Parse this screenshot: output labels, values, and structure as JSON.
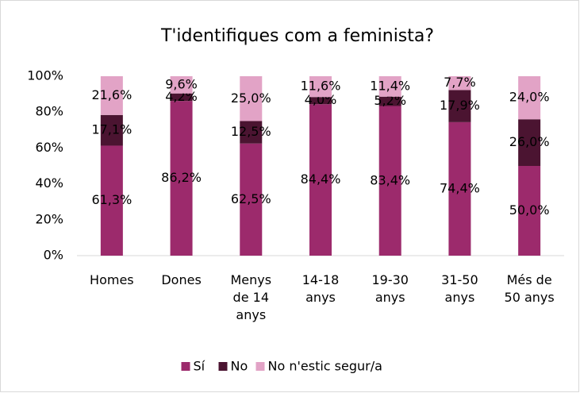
{
  "chart_data": {
    "type": "stacked_bar",
    "title": "T'identifiques com a feminista?",
    "categories": [
      "Homes",
      "Dones",
      "Menys de 14 anys",
      "14-18 anys",
      "19-30 anys",
      "31-50 anys",
      "Més de 50 anys"
    ],
    "series": [
      {
        "name": "Sí",
        "color": "#9c2a6c",
        "values": [
          61.3,
          86.2,
          62.5,
          84.4,
          83.4,
          74.4,
          50.0
        ],
        "value_labels": [
          "61,3%",
          "86,2%",
          "62,5%",
          "84,4%",
          "83,4%",
          "74,4%",
          "50,0%"
        ]
      },
      {
        "name": "No",
        "color": "#4b1431",
        "values": [
          17.1,
          4.2,
          12.5,
          4.0,
          5.2,
          17.9,
          26.0
        ],
        "value_labels": [
          "17,1%",
          "4,2%",
          "12,5%",
          "4,0%",
          "5,2%",
          "17,9%",
          "26,0%"
        ]
      },
      {
        "name": "No n'estic segur/a",
        "color": "#e2a3c6",
        "values": [
          21.6,
          9.6,
          25.0,
          11.6,
          11.4,
          7.7,
          24.0
        ],
        "value_labels": [
          "21,6%",
          "9,6%",
          "25,0%",
          "11,6%",
          "11,4%",
          "7,7%",
          "24,0%"
        ]
      }
    ],
    "ylim": [
      0,
      100
    ],
    "yticks": [
      {
        "value": 0,
        "label": "0%"
      },
      {
        "value": 20,
        "label": "20%"
      },
      {
        "value": 40,
        "label": "40%"
      },
      {
        "value": 60,
        "label": "60%"
      },
      {
        "value": 80,
        "label": "80%"
      },
      {
        "value": 100,
        "label": "100%"
      }
    ],
    "legend": "bottom"
  }
}
